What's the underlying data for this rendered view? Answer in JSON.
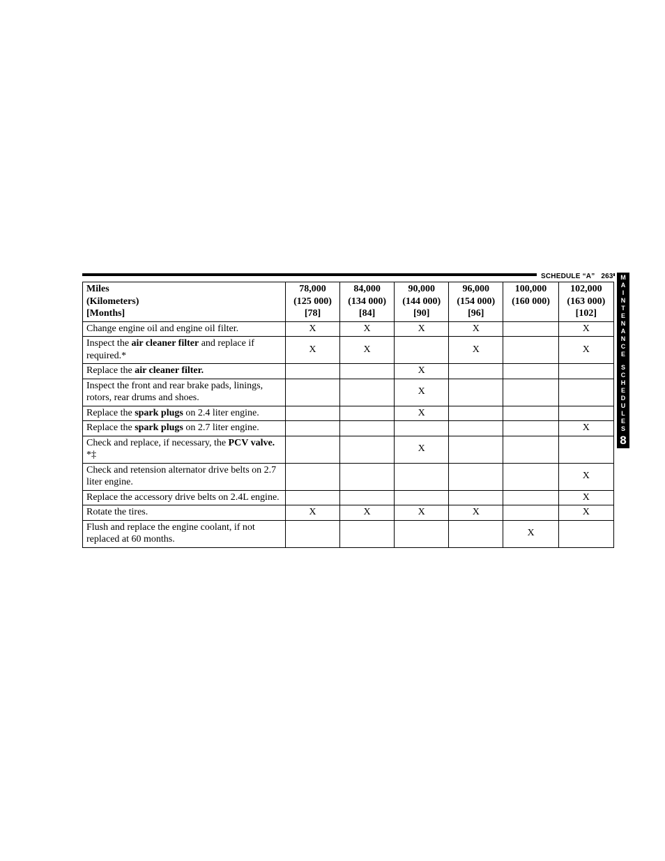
{
  "header": {
    "label": "SCHEDULE “A”",
    "page_num": "263"
  },
  "side_tab": {
    "top": "MAINTENANCE",
    "gap": true,
    "mid": "SCHEDULES",
    "num": "8"
  },
  "table": {
    "head": {
      "desc_lines": [
        "Miles",
        "(Kilometers)",
        "[Months]"
      ],
      "cols": [
        {
          "miles": "78,000",
          "km": "(125 000)",
          "months": "[78]"
        },
        {
          "miles": "84,000",
          "km": "(134 000)",
          "months": "[84]"
        },
        {
          "miles": "90,000",
          "km": "(144 000)",
          "months": "[90]"
        },
        {
          "miles": "96,000",
          "km": "(154 000)",
          "months": "[96]"
        },
        {
          "miles": "100,000",
          "km": "(160 000)",
          "months": ""
        },
        {
          "miles": "102,000",
          "km": "(163 000)",
          "months": "[102]"
        }
      ]
    },
    "rows": [
      {
        "desc": "Change engine oil and engine oil filter.",
        "marks": [
          "X",
          "X",
          "X",
          "X",
          "",
          "X"
        ]
      },
      {
        "desc_html": "Inspect the <b>air cleaner filter</b> and replace if required.*",
        "marks": [
          "X",
          "X",
          "",
          "X",
          "",
          "X"
        ]
      },
      {
        "desc_html": "Replace the <b>air cleaner filter.</b>",
        "marks": [
          "",
          "",
          "X",
          "",
          "",
          ""
        ]
      },
      {
        "desc": "Inspect the front and rear brake pads, linings, rotors, rear drums and shoes.",
        "marks": [
          "",
          "",
          "X",
          "",
          "",
          ""
        ]
      },
      {
        "desc_html": "Replace the <b>spark plugs</b> on 2.4 liter engine.",
        "marks": [
          "",
          "",
          "X",
          "",
          "",
          ""
        ]
      },
      {
        "desc_html": "Replace the <b>spark plugs</b> on 2.7 liter engine.",
        "marks": [
          "",
          "",
          "",
          "",
          "",
          "X"
        ]
      },
      {
        "desc_html": "Check and replace, if necessary, the <b>PCV valve.</b> *‡",
        "marks": [
          "",
          "",
          "X",
          "",
          "",
          ""
        ]
      },
      {
        "desc": "Check and retension alternator drive belts on 2.7 liter engine.",
        "marks": [
          "",
          "",
          "",
          "",
          "",
          "X"
        ]
      },
      {
        "desc": "Replace the accessory drive belts on 2.4L engine.",
        "marks": [
          "",
          "",
          "",
          "",
          "",
          "X"
        ]
      },
      {
        "desc": "Rotate the tires.",
        "marks": [
          "X",
          "X",
          "X",
          "X",
          "",
          "X"
        ]
      },
      {
        "desc": "Flush and replace the engine coolant, if not replaced at 60 months.",
        "marks": [
          "",
          "",
          "",
          "",
          "X",
          ""
        ]
      }
    ]
  }
}
